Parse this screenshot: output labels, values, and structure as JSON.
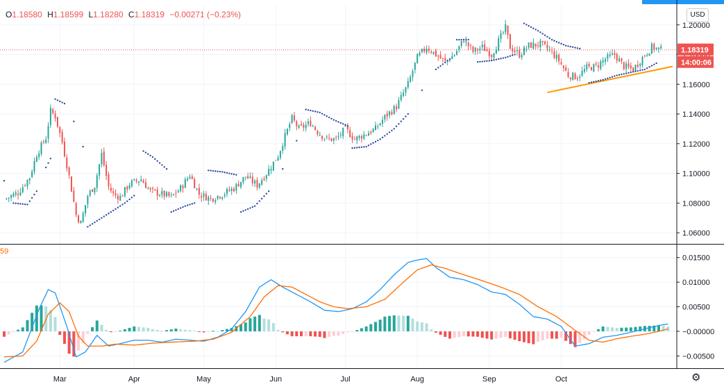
{
  "header": {
    "open_label": "O",
    "open": "1.18580",
    "high_label": "H",
    "high": "1.18599",
    "low_label": "L",
    "low": "1.18280",
    "close_label": "C",
    "close": "1.18319",
    "change": "−0.00271 (−0.23%)"
  },
  "lower_pane_label_fragment": "59",
  "currency_button": "USD",
  "price_tag": "1.18319",
  "countdown_tag": "14:00:06",
  "colors": {
    "up": "#26a69a",
    "down": "#ef5350",
    "psar": "#2a4a9c",
    "trendline": "#ff9800",
    "macd": "#2196f3",
    "signal": "#ff6d00",
    "hist_up_strong": "#26a69a",
    "hist_up_weak": "#b2dfdb",
    "hist_down_strong": "#ef5350",
    "hist_down_weak": "#ffcdd2",
    "tag_bg": "#ef5350"
  },
  "chart_data": [
    {
      "type": "candlestick",
      "title": "",
      "x_labels": [
        "Mar",
        "Apr",
        "May",
        "Jun",
        "Jul",
        "Aug",
        "Sep",
        "Oct"
      ],
      "y_ticks": [
        "1.20000",
        "1.18000",
        "1.16000",
        "1.14000",
        "1.12000",
        "1.10000",
        "1.08000",
        "1.06000"
      ],
      "ylim": [
        1.053,
        1.213
      ],
      "grid": true,
      "close_series": [
        {
          "d": 0,
          "v": 1.0825
        },
        {
          "d": 6,
          "v": 1.087
        },
        {
          "d": 11,
          "v": 1.0975
        },
        {
          "d": 14,
          "v": 1.113
        },
        {
          "d": 18,
          "v": 1.124
        },
        {
          "d": 20,
          "v": 1.142
        },
        {
          "d": 22,
          "v": 1.1385
        },
        {
          "d": 25,
          "v": 1.121
        },
        {
          "d": 28,
          "v": 1.098
        },
        {
          "d": 31,
          "v": 1.072
        },
        {
          "d": 33,
          "v": 1.0665
        },
        {
          "d": 36,
          "v": 1.085
        },
        {
          "d": 39,
          "v": 1.092
        },
        {
          "d": 42,
          "v": 1.113
        },
        {
          "d": 45,
          "v": 1.091
        },
        {
          "d": 47,
          "v": 1.086
        },
        {
          "d": 50,
          "v": 1.084
        },
        {
          "d": 54,
          "v": 1.093
        },
        {
          "d": 59,
          "v": 1.096
        },
        {
          "d": 63,
          "v": 1.088
        },
        {
          "d": 68,
          "v": 1.086
        },
        {
          "d": 72,
          "v": 1.084
        },
        {
          "d": 76,
          "v": 1.09
        },
        {
          "d": 80,
          "v": 1.099
        },
        {
          "d": 84,
          "v": 1.086
        },
        {
          "d": 89,
          "v": 1.083
        },
        {
          "d": 94,
          "v": 1.086
        },
        {
          "d": 99,
          "v": 1.09
        },
        {
          "d": 104,
          "v": 1.098
        },
        {
          "d": 109,
          "v": 1.092
        },
        {
          "d": 113,
          "v": 1.1
        },
        {
          "d": 118,
          "v": 1.112
        },
        {
          "d": 121,
          "v": 1.125
        },
        {
          "d": 124,
          "v": 1.137
        },
        {
          "d": 127,
          "v": 1.13
        },
        {
          "d": 132,
          "v": 1.134
        },
        {
          "d": 135,
          "v": 1.128
        },
        {
          "d": 139,
          "v": 1.123
        },
        {
          "d": 143,
          "v": 1.123
        },
        {
          "d": 147,
          "v": 1.13
        },
        {
          "d": 151,
          "v": 1.123
        },
        {
          "d": 155,
          "v": 1.126
        },
        {
          "d": 160,
          "v": 1.13
        },
        {
          "d": 164,
          "v": 1.138
        },
        {
          "d": 169,
          "v": 1.145
        },
        {
          "d": 174,
          "v": 1.16
        },
        {
          "d": 178,
          "v": 1.178
        },
        {
          "d": 182,
          "v": 1.185
        },
        {
          "d": 186,
          "v": 1.18
        },
        {
          "d": 190,
          "v": 1.175
        },
        {
          "d": 194,
          "v": 1.18
        },
        {
          "d": 198,
          "v": 1.19
        },
        {
          "d": 202,
          "v": 1.182
        },
        {
          "d": 206,
          "v": 1.185
        },
        {
          "d": 210,
          "v": 1.18
        },
        {
          "d": 214,
          "v": 1.192
        },
        {
          "d": 216,
          "v": 1.198
        },
        {
          "d": 218,
          "v": 1.185
        },
        {
          "d": 222,
          "v": 1.18
        },
        {
          "d": 226,
          "v": 1.186
        },
        {
          "d": 231,
          "v": 1.187
        },
        {
          "d": 235,
          "v": 1.183
        },
        {
          "d": 239,
          "v": 1.176
        },
        {
          "d": 243,
          "v": 1.166
        },
        {
          "d": 247,
          "v": 1.165
        },
        {
          "d": 251,
          "v": 1.171
        },
        {
          "d": 255,
          "v": 1.172
        },
        {
          "d": 259,
          "v": 1.177
        },
        {
          "d": 263,
          "v": 1.18
        },
        {
          "d": 267,
          "v": 1.172
        },
        {
          "d": 271,
          "v": 1.17
        },
        {
          "d": 275,
          "v": 1.178
        },
        {
          "d": 279,
          "v": 1.185
        },
        {
          "d": 283,
          "v": 1.1832
        }
      ],
      "parabolic_sar": [
        {
          "d": 0,
          "v": 1.095
        },
        {
          "d": 4,
          "v": 1.08
        },
        {
          "d": 10,
          "v": 1.079
        },
        {
          "d": 14,
          "v": 1.088
        },
        {
          "d": 18,
          "v": 1.104
        },
        {
          "d": 20,
          "v": 1.11
        },
        {
          "d": 22,
          "v": 1.15
        },
        {
          "d": 26,
          "v": 1.147
        },
        {
          "d": 30,
          "v": 1.135
        },
        {
          "d": 34,
          "v": 1.118
        },
        {
          "d": 36,
          "v": 1.064
        },
        {
          "d": 40,
          "v": 1.068
        },
        {
          "d": 46,
          "v": 1.074
        },
        {
          "d": 52,
          "v": 1.08
        },
        {
          "d": 56,
          "v": 1.085
        },
        {
          "d": 60,
          "v": 1.115
        },
        {
          "d": 64,
          "v": 1.111
        },
        {
          "d": 70,
          "v": 1.103
        },
        {
          "d": 72,
          "v": 1.074
        },
        {
          "d": 78,
          "v": 1.078
        },
        {
          "d": 82,
          "v": 1.08
        },
        {
          "d": 88,
          "v": 1.102
        },
        {
          "d": 94,
          "v": 1.101
        },
        {
          "d": 100,
          "v": 1.099
        },
        {
          "d": 102,
          "v": 1.074
        },
        {
          "d": 108,
          "v": 1.078
        },
        {
          "d": 114,
          "v": 1.088
        },
        {
          "d": 120,
          "v": 1.103
        },
        {
          "d": 126,
          "v": 1.122
        },
        {
          "d": 130,
          "v": 1.143
        },
        {
          "d": 136,
          "v": 1.141
        },
        {
          "d": 142,
          "v": 1.136
        },
        {
          "d": 148,
          "v": 1.132
        },
        {
          "d": 150,
          "v": 1.117
        },
        {
          "d": 156,
          "v": 1.118
        },
        {
          "d": 162,
          "v": 1.123
        },
        {
          "d": 168,
          "v": 1.13
        },
        {
          "d": 174,
          "v": 1.14
        },
        {
          "d": 180,
          "v": 1.156
        },
        {
          "d": 186,
          "v": 1.17
        },
        {
          "d": 192,
          "v": 1.177
        },
        {
          "d": 195,
          "v": 1.19
        },
        {
          "d": 200,
          "v": 1.19
        },
        {
          "d": 204,
          "v": 1.175
        },
        {
          "d": 210,
          "v": 1.176
        },
        {
          "d": 216,
          "v": 1.178
        },
        {
          "d": 220,
          "v": 1.18
        },
        {
          "d": 224,
          "v": 1.201
        },
        {
          "d": 230,
          "v": 1.196
        },
        {
          "d": 236,
          "v": 1.19
        },
        {
          "d": 242,
          "v": 1.186
        },
        {
          "d": 248,
          "v": 1.184
        },
        {
          "d": 252,
          "v": 1.161
        },
        {
          "d": 258,
          "v": 1.163
        },
        {
          "d": 264,
          "v": 1.166
        },
        {
          "d": 270,
          "v": 1.168
        },
        {
          "d": 276,
          "v": 1.17
        },
        {
          "d": 282,
          "v": 1.175
        }
      ],
      "trendline": {
        "from": {
          "d": 234,
          "v": 1.1545
        },
        "to": {
          "d": 288,
          "v": 1.172
        }
      }
    },
    {
      "type": "macd",
      "y_ticks": [
        "0.01500",
        "0.01000",
        "0.00500",
        "−0.00000",
        "−0.00500"
      ],
      "ylim": [
        -0.0075,
        0.0175
      ],
      "macd_line": [
        {
          "d": 0,
          "v": -0.0063
        },
        {
          "d": 8,
          "v": -0.0042
        },
        {
          "d": 15,
          "v": 0.0045
        },
        {
          "d": 19,
          "v": 0.0085
        },
        {
          "d": 22,
          "v": 0.0078
        },
        {
          "d": 27,
          "v": 0.001
        },
        {
          "d": 31,
          "v": -0.0052
        },
        {
          "d": 35,
          "v": -0.0042
        },
        {
          "d": 40,
          "v": -0.0008
        },
        {
          "d": 45,
          "v": -0.003
        },
        {
          "d": 50,
          "v": -0.0025
        },
        {
          "d": 56,
          "v": -0.0018
        },
        {
          "d": 62,
          "v": -0.0018
        },
        {
          "d": 68,
          "v": -0.0022
        },
        {
          "d": 74,
          "v": -0.0016
        },
        {
          "d": 80,
          "v": -0.0018
        },
        {
          "d": 86,
          "v": -0.002
        },
        {
          "d": 92,
          "v": -0.0012
        },
        {
          "d": 98,
          "v": 0.0005
        },
        {
          "d": 104,
          "v": 0.004
        },
        {
          "d": 110,
          "v": 0.009
        },
        {
          "d": 115,
          "v": 0.0105
        },
        {
          "d": 120,
          "v": 0.009
        },
        {
          "d": 126,
          "v": 0.0075
        },
        {
          "d": 132,
          "v": 0.006
        },
        {
          "d": 138,
          "v": 0.0043
        },
        {
          "d": 144,
          "v": 0.004
        },
        {
          "d": 150,
          "v": 0.0046
        },
        {
          "d": 156,
          "v": 0.006
        },
        {
          "d": 162,
          "v": 0.0085
        },
        {
          "d": 168,
          "v": 0.0115
        },
        {
          "d": 174,
          "v": 0.014
        },
        {
          "d": 178,
          "v": 0.0145
        },
        {
          "d": 182,
          "v": 0.0148
        },
        {
          "d": 186,
          "v": 0.013
        },
        {
          "d": 192,
          "v": 0.011
        },
        {
          "d": 198,
          "v": 0.0105
        },
        {
          "d": 204,
          "v": 0.0095
        },
        {
          "d": 210,
          "v": 0.008
        },
        {
          "d": 216,
          "v": 0.0075
        },
        {
          "d": 222,
          "v": 0.0055
        },
        {
          "d": 228,
          "v": 0.003
        },
        {
          "d": 234,
          "v": 0.0025
        },
        {
          "d": 240,
          "v": 0.001
        },
        {
          "d": 246,
          "v": -0.003
        },
        {
          "d": 252,
          "v": -0.0025
        },
        {
          "d": 258,
          "v": -0.0012
        },
        {
          "d": 264,
          "v": -0.0008
        },
        {
          "d": 270,
          "v": -0.0002
        },
        {
          "d": 276,
          "v": 0.0005
        },
        {
          "d": 282,
          "v": 0.0012
        },
        {
          "d": 286,
          "v": 0.0015
        }
      ],
      "signal_line": [
        {
          "d": 0,
          "v": -0.0052
        },
        {
          "d": 8,
          "v": -0.005
        },
        {
          "d": 14,
          "v": -0.002
        },
        {
          "d": 19,
          "v": 0.0035
        },
        {
          "d": 24,
          "v": 0.0058
        },
        {
          "d": 28,
          "v": 0.004
        },
        {
          "d": 32,
          "v": -0.001
        },
        {
          "d": 36,
          "v": -0.003
        },
        {
          "d": 42,
          "v": -0.003
        },
        {
          "d": 48,
          "v": -0.0026
        },
        {
          "d": 56,
          "v": -0.0028
        },
        {
          "d": 64,
          "v": -0.0024
        },
        {
          "d": 72,
          "v": -0.0022
        },
        {
          "d": 82,
          "v": -0.002
        },
        {
          "d": 90,
          "v": -0.0016
        },
        {
          "d": 98,
          "v": -0.0002
        },
        {
          "d": 106,
          "v": 0.003
        },
        {
          "d": 112,
          "v": 0.007
        },
        {
          "d": 118,
          "v": 0.0093
        },
        {
          "d": 124,
          "v": 0.009
        },
        {
          "d": 130,
          "v": 0.0075
        },
        {
          "d": 136,
          "v": 0.006
        },
        {
          "d": 142,
          "v": 0.005
        },
        {
          "d": 148,
          "v": 0.0046
        },
        {
          "d": 156,
          "v": 0.005
        },
        {
          "d": 164,
          "v": 0.0065
        },
        {
          "d": 172,
          "v": 0.01
        },
        {
          "d": 178,
          "v": 0.0125
        },
        {
          "d": 184,
          "v": 0.0135
        },
        {
          "d": 190,
          "v": 0.0128
        },
        {
          "d": 198,
          "v": 0.0115
        },
        {
          "d": 206,
          "v": 0.0103
        },
        {
          "d": 214,
          "v": 0.009
        },
        {
          "d": 222,
          "v": 0.0075
        },
        {
          "d": 230,
          "v": 0.005
        },
        {
          "d": 238,
          "v": 0.003
        },
        {
          "d": 246,
          "v": 0.0002
        },
        {
          "d": 252,
          "v": -0.0018
        },
        {
          "d": 258,
          "v": -0.0022
        },
        {
          "d": 264,
          "v": -0.0015
        },
        {
          "d": 270,
          "v": -0.001
        },
        {
          "d": 276,
          "v": -0.0006
        },
        {
          "d": 282,
          "v": 0.0
        },
        {
          "d": 286,
          "v": 0.0005
        }
      ]
    }
  ]
}
